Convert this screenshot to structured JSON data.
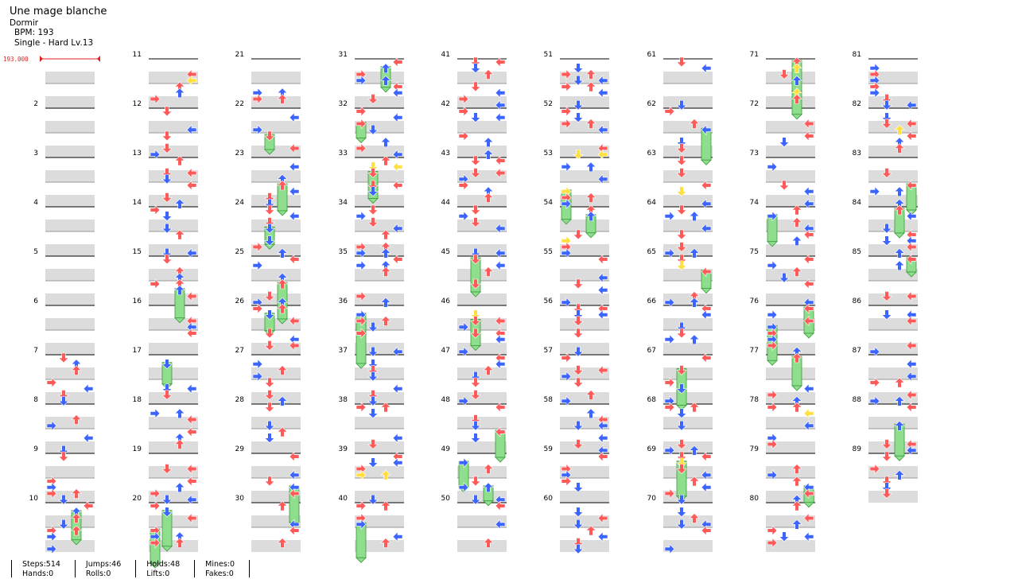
{
  "header": {
    "title": "Une mage blanche",
    "subtitle": "Dormir",
    "bpm_line": "BPM: 193",
    "difficulty_line": "Single - Hard  Lv.13"
  },
  "bpm_marker": {
    "label": "193.000",
    "color": "#e02020"
  },
  "colors": {
    "red_arrow": "#ff5a5a",
    "blue_arrow": "#3c64ff",
    "yellow_arrow": "#ffe040",
    "hold_green": "#8ede8e",
    "lane_shade": "#dcdcdc"
  },
  "measures": {
    "total": 89,
    "per_column": 10,
    "columns": 9
  },
  "stats": [
    {
      "top": "Steps:514",
      "bottom": "Hands:0"
    },
    {
      "top": "Jumps:46",
      "bottom": "Rolls:0"
    },
    {
      "top": "Holds:48",
      "bottom": "Lifts:0"
    },
    {
      "top": "Mines:0",
      "bottom": "Fakes:0"
    }
  ]
}
